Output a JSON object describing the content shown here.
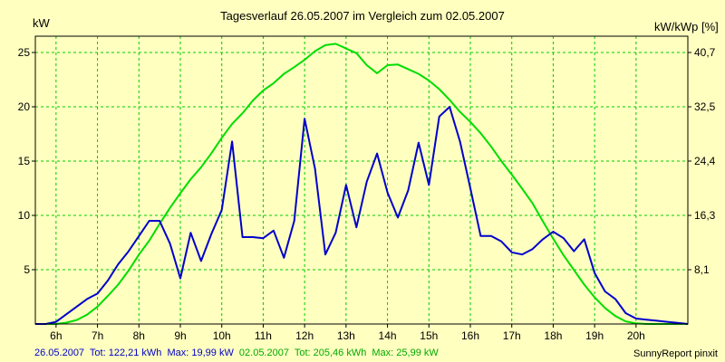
{
  "chart_data": {
    "type": "line",
    "title": "Tagesverlauf 26.05.2007 im Vergleich zum 02.05.2007",
    "ylabel_left": "kW",
    "ylabel_right": "kW/kWp [%]",
    "xlim": [
      5.5,
      21.25
    ],
    "ylim": [
      0,
      26.5
    ],
    "grid": true,
    "x_ticks": [
      {
        "v": 6,
        "label": "6h"
      },
      {
        "v": 7,
        "label": "7h"
      },
      {
        "v": 8,
        "label": "8h"
      },
      {
        "v": 9,
        "label": "9h"
      },
      {
        "v": 10,
        "label": "10h"
      },
      {
        "v": 11,
        "label": "11h"
      },
      {
        "v": 12,
        "label": "12h"
      },
      {
        "v": 13,
        "label": "13h"
      },
      {
        "v": 14,
        "label": "14h"
      },
      {
        "v": 15,
        "label": "15h"
      },
      {
        "v": 16,
        "label": "16h"
      },
      {
        "v": 17,
        "label": "17h"
      },
      {
        "v": 18,
        "label": "18h"
      },
      {
        "v": 19,
        "label": "19h"
      },
      {
        "v": 20,
        "label": "20h"
      }
    ],
    "y_ticks_left": [
      {
        "v": 5,
        "label": "5"
      },
      {
        "v": 10,
        "label": "10"
      },
      {
        "v": 15,
        "label": "15"
      },
      {
        "v": 20,
        "label": "20"
      },
      {
        "v": 25,
        "label": "25"
      }
    ],
    "y_ticks_right": [
      {
        "v": 5,
        "label": "8,1"
      },
      {
        "v": 10,
        "label": "16,3"
      },
      {
        "v": 15,
        "label": "24,4"
      },
      {
        "v": 20,
        "label": "32,5"
      },
      {
        "v": 25,
        "label": "40,7"
      }
    ],
    "series": [
      {
        "name": "26.05.2007",
        "color": "#0000cc",
        "x": [
          5.5,
          5.75,
          6.0,
          6.25,
          6.5,
          6.75,
          7.0,
          7.25,
          7.5,
          7.75,
          8.0,
          8.25,
          8.5,
          8.75,
          9.0,
          9.25,
          9.5,
          9.75,
          10.0,
          10.25,
          10.5,
          10.75,
          11.0,
          11.25,
          11.5,
          11.75,
          12.0,
          12.25,
          12.5,
          12.75,
          13.0,
          13.25,
          13.5,
          13.75,
          14.0,
          14.25,
          14.5,
          14.75,
          15.0,
          15.25,
          15.5,
          15.75,
          16.0,
          16.25,
          16.5,
          16.75,
          17.0,
          17.25,
          17.5,
          17.75,
          18.0,
          18.25,
          18.5,
          18.75,
          19.0,
          19.25,
          19.5,
          19.75,
          20.0,
          20.25,
          20.5,
          20.75,
          21.0,
          21.25
        ],
        "values": [
          0.0,
          0.0,
          0.2,
          0.9,
          1.6,
          2.3,
          2.8,
          4.0,
          5.5,
          6.7,
          8.1,
          9.5,
          9.5,
          7.4,
          4.2,
          8.4,
          5.8,
          8.3,
          10.5,
          16.8,
          8.0,
          8.0,
          7.9,
          8.6,
          6.1,
          9.5,
          18.9,
          14.3,
          6.4,
          8.4,
          12.8,
          8.9,
          13.1,
          15.7,
          12.1,
          9.8,
          12.3,
          16.7,
          12.8,
          19.1,
          19.99,
          16.8,
          12.5,
          8.1,
          8.1,
          7.6,
          6.6,
          6.4,
          6.9,
          7.8,
          8.5,
          7.9,
          6.7,
          7.8,
          4.7,
          3.0,
          2.3,
          1.0,
          0.5,
          0.4,
          0.3,
          0.2,
          0.1,
          0.0
        ]
      },
      {
        "name": "02.05.2007",
        "color": "#00dd00",
        "x": [
          5.5,
          5.75,
          6.0,
          6.25,
          6.5,
          6.75,
          7.0,
          7.25,
          7.5,
          7.75,
          8.0,
          8.25,
          8.5,
          8.75,
          9.0,
          9.25,
          9.5,
          9.75,
          10.0,
          10.25,
          10.5,
          10.75,
          11.0,
          11.25,
          11.5,
          11.75,
          12.0,
          12.25,
          12.5,
          12.75,
          13.0,
          13.25,
          13.5,
          13.75,
          14.0,
          14.25,
          14.5,
          14.75,
          15.0,
          15.25,
          15.5,
          15.75,
          16.0,
          16.25,
          16.5,
          16.75,
          17.0,
          17.25,
          17.5,
          17.75,
          18.0,
          18.25,
          18.5,
          18.75,
          19.0,
          19.25,
          19.5,
          19.75,
          20.0,
          20.25,
          20.5,
          20.75,
          21.0,
          21.25
        ],
        "values": [
          0.0,
          0.0,
          0.0,
          0.2,
          0.6,
          1.4,
          2.6,
          4.2,
          5.9,
          8.0,
          10.4,
          12.5,
          15.0,
          17.4,
          19.6,
          21.7,
          23.5,
          25.6,
          27.9,
          30.0,
          31.6,
          33.5,
          35.0,
          36.1,
          37.5,
          38.5,
          39.6,
          40.9,
          41.8,
          42.0,
          41.3,
          40.6,
          38.8,
          37.6,
          38.8,
          38.9,
          38.2,
          37.5,
          36.5,
          35.2,
          33.6,
          31.8,
          30.3,
          28.6,
          26.6,
          24.4,
          22.4,
          20.3,
          18.1,
          15.4,
          12.8,
          10.3,
          8.1,
          5.9,
          4.0,
          2.4,
          1.2,
          0.4,
          0.1,
          0.0,
          0.0,
          0.0,
          0.0,
          0.0
        ],
        "unit": "kW/kWp [%]"
      }
    ],
    "footer": {
      "left": {
        "s1_date": "26.05.2007",
        "s1_tot": "Tot: 122,21 kWh",
        "s1_max": "Max: 19,99 kW",
        "s2_date": "02.05.2007",
        "s2_tot": "Tot: 205,46 kWh",
        "s2_max": "Max: 25,99 kW"
      },
      "right": "SunnyReport pinxit"
    },
    "colors": {
      "background": "#ffffc0",
      "grid": "#00cc00",
      "axis": "#000000",
      "footer_s1": "#0000cc",
      "footer_s2": "#00aa00"
    }
  }
}
